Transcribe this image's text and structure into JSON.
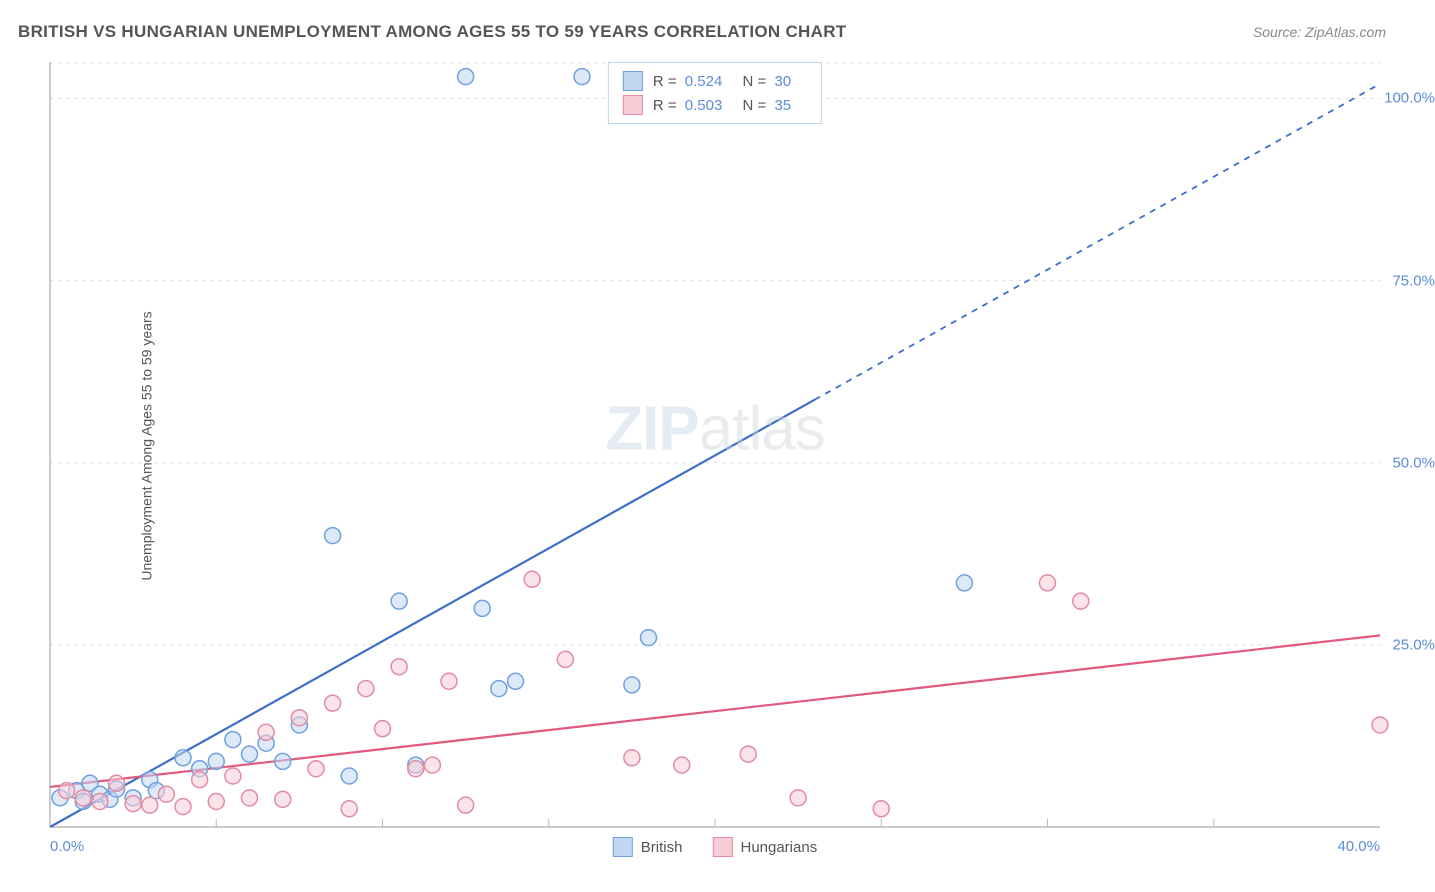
{
  "title": "BRITISH VS HUNGARIAN UNEMPLOYMENT AMONG AGES 55 TO 59 YEARS CORRELATION CHART",
  "source": "Source: ZipAtlas.com",
  "y_axis_label": "Unemployment Among Ages 55 to 59 years",
  "watermark_bold": "ZIP",
  "watermark_rest": "atlas",
  "chart": {
    "type": "scatter",
    "background_color": "#ffffff",
    "grid_color": "#dddddd",
    "axis_color": "#999999",
    "tick_color": "#bbbbbb",
    "xlim": [
      0,
      40
    ],
    "ylim": [
      0,
      105
    ],
    "y_ticks": [
      25,
      50,
      75,
      100
    ],
    "y_tick_labels": [
      "25.0%",
      "50.0%",
      "75.0%",
      "100.0%"
    ],
    "x_minor_ticks": [
      5,
      10,
      15,
      20,
      25,
      30,
      35
    ],
    "x_start_label": "0.0%",
    "x_end_label": "40.0%",
    "label_color": "#5b8dd6",
    "label_fontsize": 15,
    "marker_radius": 8,
    "marker_stroke_width": 1.5,
    "series": [
      {
        "name": "British",
        "color_fill": "#c3d7f2",
        "color_stroke": "#6fa0e0",
        "trend_color": "#3b6fc9",
        "trend_solid_end_x": 23,
        "trend_slope": 2.55,
        "trend_intercept": 0,
        "points": [
          [
            0.3,
            4
          ],
          [
            0.8,
            5
          ],
          [
            1.0,
            3.5
          ],
          [
            1.2,
            6
          ],
          [
            1.5,
            4.5
          ],
          [
            1.8,
            3.8
          ],
          [
            2.0,
            5.2
          ],
          [
            2.5,
            4
          ],
          [
            3.0,
            6.5
          ],
          [
            3.2,
            5
          ],
          [
            4.0,
            9.5
          ],
          [
            4.5,
            8
          ],
          [
            5.0,
            9
          ],
          [
            5.5,
            12
          ],
          [
            6.0,
            10
          ],
          [
            6.5,
            11.5
          ],
          [
            7.0,
            9
          ],
          [
            7.5,
            14
          ],
          [
            8.5,
            40
          ],
          [
            9.0,
            7
          ],
          [
            10.5,
            31
          ],
          [
            11.0,
            8.5
          ],
          [
            12.5,
            103
          ],
          [
            13.0,
            30
          ],
          [
            13.5,
            19
          ],
          [
            14.0,
            20
          ],
          [
            16.0,
            103
          ],
          [
            17.5,
            19.5
          ],
          [
            18.0,
            26
          ],
          [
            27.5,
            33.5
          ]
        ]
      },
      {
        "name": "Hungarians",
        "color_fill": "#f6cdd7",
        "color_stroke": "#e38ba3",
        "trend_color": "#e05a7e",
        "trend_solid_end_x": 40,
        "trend_slope": 0.52,
        "trend_intercept": 5.5,
        "points": [
          [
            0.5,
            5
          ],
          [
            1.0,
            4
          ],
          [
            1.5,
            3.5
          ],
          [
            2.0,
            6
          ],
          [
            2.5,
            3.2
          ],
          [
            3.0,
            3
          ],
          [
            3.5,
            4.5
          ],
          [
            4.0,
            2.8
          ],
          [
            4.5,
            6.5
          ],
          [
            5.0,
            3.5
          ],
          [
            5.5,
            7
          ],
          [
            6.0,
            4
          ],
          [
            6.5,
            13
          ],
          [
            7.0,
            3.8
          ],
          [
            7.5,
            15
          ],
          [
            8.0,
            8
          ],
          [
            8.5,
            17
          ],
          [
            9.0,
            2.5
          ],
          [
            9.5,
            19
          ],
          [
            10.0,
            13.5
          ],
          [
            10.5,
            22
          ],
          [
            11.0,
            8
          ],
          [
            11.5,
            8.5
          ],
          [
            12.0,
            20
          ],
          [
            12.5,
            3
          ],
          [
            14.5,
            34
          ],
          [
            15.5,
            23
          ],
          [
            17.5,
            9.5
          ],
          [
            19.0,
            8.5
          ],
          [
            21.0,
            10
          ],
          [
            22.5,
            4
          ],
          [
            25.0,
            2.5
          ],
          [
            30.0,
            33.5
          ],
          [
            31.0,
            31
          ],
          [
            40.0,
            14
          ]
        ]
      }
    ]
  },
  "legend_top": {
    "r_label": "R =",
    "n_label": "N =",
    "rows": [
      {
        "swatch_fill": "#c3d7f2",
        "swatch_stroke": "#6fa0e0",
        "r": "0.524",
        "n": "30"
      },
      {
        "swatch_fill": "#f6cdd7",
        "swatch_stroke": "#e38ba3",
        "r": "0.503",
        "n": "35"
      }
    ]
  },
  "legend_bottom": {
    "items": [
      {
        "label": "British",
        "swatch_fill": "#c3d7f2",
        "swatch_stroke": "#6fa0e0"
      },
      {
        "label": "Hungarians",
        "swatch_fill": "#f6cdd7",
        "swatch_stroke": "#e38ba3"
      }
    ]
  }
}
